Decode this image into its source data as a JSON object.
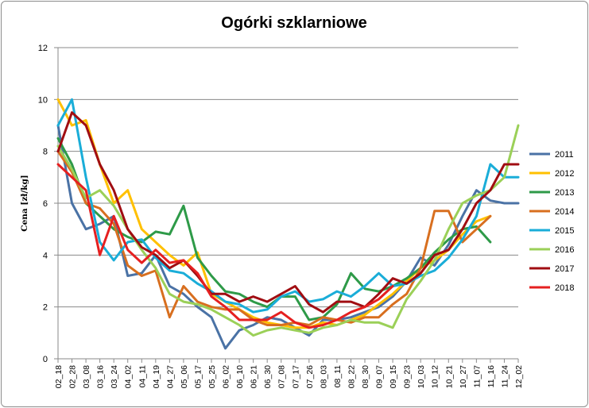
{
  "chart_data": {
    "type": "line",
    "title": "Ogórki szklarniowe",
    "xlabel": "",
    "ylabel": "Cena [zł/kg]",
    "ylim": [
      0,
      12
    ],
    "yticks": [
      0,
      2,
      4,
      6,
      8,
      10,
      12
    ],
    "grid": "horizontal",
    "legend_position": "right",
    "categories": [
      "02_18",
      "02_28",
      "03_08",
      "03_16",
      "03_24",
      "04_02",
      "04_11",
      "04_19",
      "04_27",
      "05_06",
      "05_17",
      "05_25",
      "06_02",
      "06_10",
      "06_21",
      "06_30",
      "07_08",
      "07_17",
      "07_26",
      "08_03",
      "08_11",
      "08_22",
      "08_30",
      "09_07",
      "09_15",
      "09_23",
      "10_03",
      "10_12",
      "10_21",
      "10_27",
      "11_07",
      "11_16",
      "11_24",
      "12_02"
    ],
    "series": [
      {
        "name": "2011",
        "color": "#4a72a5",
        "values": [
          9.0,
          6.0,
          5.0,
          5.2,
          5.5,
          3.2,
          3.3,
          4.0,
          2.8,
          2.5,
          2.0,
          1.6,
          0.4,
          1.1,
          1.3,
          1.6,
          1.5,
          1.2,
          0.9,
          1.5,
          1.5,
          1.6,
          1.8,
          2.0,
          2.4,
          3.0,
          3.9,
          3.6,
          4.4,
          5.5,
          6.5,
          6.1,
          6.0,
          6.0
        ]
      },
      {
        "name": "2012",
        "color": "#ffc000",
        "values": [
          10.0,
          9.0,
          9.2,
          7.5,
          6.0,
          6.5,
          5.0,
          4.5,
          4.0,
          3.6,
          4.1,
          2.5,
          2.2,
          1.9,
          1.6,
          1.4,
          1.3,
          1.2,
          1.2,
          1.4,
          1.3,
          1.5,
          1.7,
          2.1,
          2.5,
          3.0,
          3.5,
          3.8,
          4.2,
          4.8,
          5.3,
          5.5,
          null,
          null
        ]
      },
      {
        "name": "2013",
        "color": "#2e9a48",
        "values": [
          8.5,
          7.5,
          6.0,
          5.5,
          5.0,
          4.7,
          4.5,
          4.9,
          4.8,
          5.9,
          3.9,
          3.2,
          2.6,
          2.5,
          2.2,
          2.0,
          2.4,
          2.4,
          1.5,
          1.6,
          2.1,
          3.3,
          2.7,
          2.6,
          2.8,
          3.1,
          3.5,
          4.1,
          4.6,
          5.0,
          5.1,
          4.5,
          null,
          null
        ]
      },
      {
        "name": "2014",
        "color": "#d86f1f",
        "values": [
          8.0,
          7.2,
          6.0,
          5.8,
          5.2,
          3.6,
          3.2,
          3.4,
          1.6,
          2.8,
          2.2,
          2.0,
          1.9,
          1.9,
          1.5,
          1.3,
          1.3,
          1.4,
          1.3,
          1.6,
          1.5,
          1.4,
          1.6,
          1.6,
          2.1,
          2.5,
          3.5,
          5.7,
          5.7,
          4.5,
          5.0,
          5.5,
          null,
          null
        ]
      },
      {
        "name": "2015",
        "color": "#1aadd8",
        "values": [
          9.0,
          10.0,
          7.0,
          4.5,
          3.8,
          4.5,
          4.6,
          3.9,
          3.4,
          3.3,
          2.9,
          2.6,
          2.2,
          2.1,
          1.8,
          1.9,
          2.4,
          2.6,
          2.2,
          2.3,
          2.6,
          2.4,
          2.8,
          3.3,
          2.8,
          2.9,
          3.2,
          3.4,
          3.9,
          4.6,
          5.5,
          7.5,
          7.0,
          7.0
        ]
      },
      {
        "name": "2016",
        "color": "#9bd058",
        "values": [
          8.2,
          7.3,
          6.2,
          6.5,
          5.9,
          5.0,
          4.2,
          3.5,
          2.5,
          2.2,
          2.1,
          1.9,
          1.6,
          1.3,
          0.9,
          1.1,
          1.2,
          1.1,
          1.0,
          1.2,
          1.3,
          1.5,
          1.4,
          1.4,
          1.2,
          2.3,
          3.0,
          3.8,
          5.0,
          6.0,
          6.3,
          6.5,
          7.0,
          9.0
        ]
      },
      {
        "name": "2017",
        "color": "#a00d12",
        "values": [
          8.0,
          9.5,
          9.0,
          7.5,
          6.5,
          5.0,
          4.3,
          4.0,
          3.5,
          3.8,
          3.2,
          2.5,
          2.5,
          2.2,
          2.4,
          2.2,
          2.5,
          2.8,
          2.1,
          1.8,
          2.2,
          2.2,
          2.0,
          2.5,
          3.1,
          2.9,
          3.3,
          4.0,
          4.2,
          5.0,
          6.0,
          6.5,
          7.5,
          7.5
        ]
      },
      {
        "name": "2018",
        "color": "#e52020",
        "values": [
          7.5,
          7.0,
          6.5,
          4.0,
          5.5,
          4.2,
          3.7,
          4.2,
          3.7,
          3.8,
          3.3,
          2.4,
          2.0,
          1.5,
          1.5,
          1.5,
          1.8,
          1.4,
          1.2,
          1.3,
          1.5,
          1.8,
          2.0,
          2.3,
          2.8,
          null,
          null,
          null,
          null,
          null,
          null,
          null,
          null,
          null
        ]
      }
    ]
  }
}
